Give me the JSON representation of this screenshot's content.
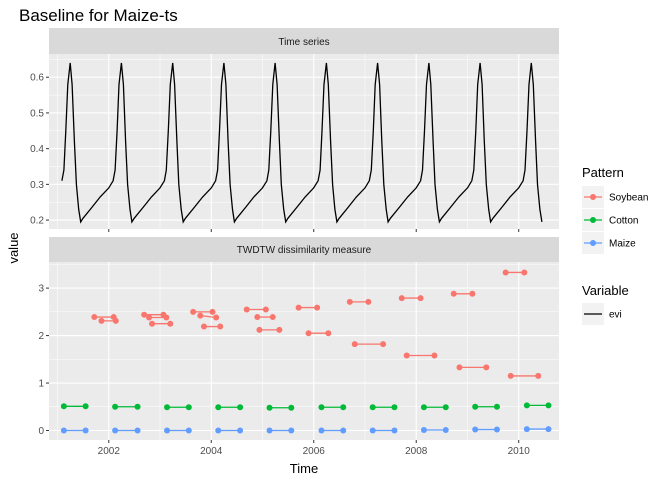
{
  "chart_data": {
    "type": "line",
    "title": "Baseline for Maize-ts",
    "xlabel": "Time",
    "ylabel": "value",
    "x_ticks": [
      "2002",
      "2004",
      "2006",
      "2008",
      "2010"
    ],
    "x_range": [
      "2000-11-01",
      "2010-10-15"
    ],
    "grid": true,
    "panels": [
      {
        "strip": "Time series",
        "type": "line",
        "ylim": [
          0.175,
          0.665
        ],
        "y_ticks": [
          "0.2",
          "0.3",
          "0.4",
          "0.5",
          "0.6"
        ],
        "y_tick_values": [
          0.2,
          0.3,
          0.4,
          0.5,
          0.6
        ],
        "series": [
          {
            "name": "evi",
            "color": "#000000",
            "pattern": "repeating annual cycle",
            "first_peak": "2001-04-01",
            "points": [
              [
                "2001-02-01",
                0.31
              ],
              [
                "2001-02-15",
                0.34
              ],
              [
                "2001-03-01",
                0.45
              ],
              [
                "2001-03-15",
                0.58
              ],
              [
                "2001-04-01",
                0.64
              ],
              [
                "2001-04-15",
                0.58
              ],
              [
                "2001-05-01",
                0.42
              ],
              [
                "2001-05-15",
                0.3
              ],
              [
                "2001-06-01",
                0.23
              ],
              [
                "2001-06-15",
                0.195
              ],
              [
                "2001-07-01",
                0.205
              ],
              [
                "2001-09-01",
                0.235
              ],
              [
                "2001-11-01",
                0.265
              ],
              [
                "2002-01-01",
                0.29
              ],
              [
                "2002-02-01",
                0.31
              ]
            ]
          }
        ]
      },
      {
        "strip": "TWDTW dissimilarity measure",
        "type": "scatter",
        "ylim": [
          -0.2,
          3.55
        ],
        "y_ticks": [
          "0",
          "1",
          "2",
          "3"
        ],
        "y_tick_values": [
          0,
          1,
          2,
          3
        ],
        "series": [
          {
            "name": "Soybean",
            "color": "#F8766D",
            "segments": [
              [
                [
                  "2001-09-20",
                  2.39
                ],
                [
                  "2002-02-05",
                  2.39
                ]
              ],
              [
                [
                  "2001-11-10",
                  2.31
                ],
                [
                  "2002-02-20",
                  2.31
                ]
              ],
              [
                [
                  "2002-09-10",
                  2.44
                ],
                [
                  "2003-01-25",
                  2.44
                ]
              ],
              [
                [
                  "2002-10-15",
                  2.38
                ],
                [
                  "2003-02-15",
                  2.38
                ]
              ],
              [
                [
                  "2002-11-05",
                  2.25
                ],
                [
                  "2003-03-15",
                  2.25
                ]
              ],
              [
                [
                  "2003-08-25",
                  2.5
                ],
                [
                  "2004-01-10",
                  2.5
                ]
              ],
              [
                [
                  "2003-10-15",
                  2.42
                ],
                [
                  "2004-02-05",
                  2.38
                ]
              ],
              [
                [
                  "2003-11-10",
                  2.19
                ],
                [
                  "2004-03-05",
                  2.19
                ]
              ],
              [
                [
                  "2004-09-10",
                  2.55
                ],
                [
                  "2005-01-25",
                  2.55
                ]
              ],
              [
                [
                  "2004-11-25",
                  2.39
                ],
                [
                  "2005-03-15",
                  2.39
                ]
              ],
              [
                [
                  "2004-12-10",
                  2.12
                ],
                [
                  "2005-05-01",
                  2.12
                ]
              ],
              [
                [
                  "2005-09-15",
                  2.59
                ],
                [
                  "2006-01-25",
                  2.59
                ]
              ],
              [
                [
                  "2005-11-25",
                  2.05
                ],
                [
                  "2006-04-15",
                  2.05
                ]
              ],
              [
                [
                  "2006-09-15",
                  2.71
                ],
                [
                  "2007-01-25",
                  2.71
                ]
              ],
              [
                [
                  "2006-10-20",
                  1.82
                ],
                [
                  "2007-05-10",
                  1.82
                ]
              ],
              [
                [
                  "2007-09-20",
                  2.79
                ],
                [
                  "2008-02-01",
                  2.79
                ]
              ],
              [
                [
                  "2007-10-25",
                  1.58
                ],
                [
                  "2008-05-10",
                  1.58
                ]
              ],
              [
                [
                  "2008-09-25",
                  2.88
                ],
                [
                  "2009-02-05",
                  2.88
                ]
              ],
              [
                [
                  "2008-11-05",
                  1.33
                ],
                [
                  "2009-05-15",
                  1.33
                ]
              ],
              [
                [
                  "2009-09-30",
                  3.33
                ],
                [
                  "2010-02-10",
                  3.33
                ]
              ],
              [
                [
                  "2009-11-05",
                  1.15
                ],
                [
                  "2010-05-20",
                  1.15
                ]
              ]
            ]
          },
          {
            "name": "Cotton",
            "color": "#00BA38",
            "segments": [
              [
                [
                  "2001-02-15",
                  0.51
                ],
                [
                  "2001-07-20",
                  0.51
                ]
              ],
              [
                [
                  "2002-02-15",
                  0.5
                ],
                [
                  "2002-07-25",
                  0.5
                ]
              ],
              [
                [
                  "2003-02-20",
                  0.49
                ],
                [
                  "2003-07-25",
                  0.49
                ]
              ],
              [
                [
                  "2004-02-20",
                  0.49
                ],
                [
                  "2004-07-25",
                  0.49
                ]
              ],
              [
                [
                  "2005-02-20",
                  0.48
                ],
                [
                  "2005-07-25",
                  0.48
                ]
              ],
              [
                [
                  "2006-02-25",
                  0.49
                ],
                [
                  "2006-07-30",
                  0.49
                ]
              ],
              [
                [
                  "2007-02-25",
                  0.49
                ],
                [
                  "2007-07-30",
                  0.49
                ]
              ],
              [
                [
                  "2008-02-25",
                  0.49
                ],
                [
                  "2008-07-30",
                  0.49
                ]
              ],
              [
                [
                  "2009-02-25",
                  0.5
                ],
                [
                  "2009-07-30",
                  0.5
                ]
              ],
              [
                [
                  "2010-02-28",
                  0.53
                ],
                [
                  "2010-08-01",
                  0.53
                ]
              ]
            ]
          },
          {
            "name": "Maize",
            "color": "#619CFF",
            "segments": [
              [
                [
                  "2001-02-15",
                  0.0
                ],
                [
                  "2001-07-20",
                  0.0
                ]
              ],
              [
                [
                  "2002-02-15",
                  0.0
                ],
                [
                  "2002-07-25",
                  0.0
                ]
              ],
              [
                [
                  "2003-02-20",
                  0.0
                ],
                [
                  "2003-07-25",
                  0.0
                ]
              ],
              [
                [
                  "2004-02-20",
                  0.0
                ],
                [
                  "2004-07-25",
                  0.0
                ]
              ],
              [
                [
                  "2005-02-20",
                  0.0
                ],
                [
                  "2005-07-25",
                  0.0
                ]
              ],
              [
                [
                  "2006-02-25",
                  0.0
                ],
                [
                  "2006-07-30",
                  0.0
                ]
              ],
              [
                [
                  "2007-02-25",
                  0.0
                ],
                [
                  "2007-07-30",
                  0.0
                ]
              ],
              [
                [
                  "2008-02-25",
                  0.01
                ],
                [
                  "2008-07-30",
                  0.01
                ]
              ],
              [
                [
                  "2009-02-25",
                  0.02
                ],
                [
                  "2009-07-30",
                  0.02
                ]
              ],
              [
                [
                  "2010-02-28",
                  0.03
                ],
                [
                  "2010-08-01",
                  0.03
                ]
              ]
            ]
          }
        ]
      }
    ],
    "legends": [
      {
        "title": "Pattern",
        "placement": "right",
        "entries": [
          {
            "label": "Soybean",
            "color": "#F8766D"
          },
          {
            "label": "Cotton",
            "color": "#00BA38"
          },
          {
            "label": "Maize",
            "color": "#619CFF"
          }
        ]
      },
      {
        "title": "Variable",
        "placement": "right",
        "entries": [
          {
            "label": "evi",
            "color": "#000000"
          }
        ]
      }
    ]
  }
}
